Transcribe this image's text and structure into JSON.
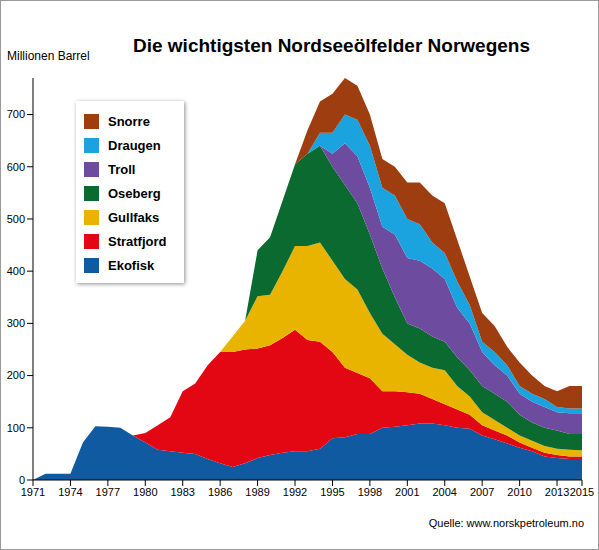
{
  "chart_data": {
    "type": "area",
    "stacked": true,
    "title": "Die wichtigsten Nordseeölfelder Norwegens",
    "y_label": "Millionen Barrel",
    "source": "Quelle: www.norskpetroleum.no",
    "legend": "upper left",
    "grid": false,
    "xlim": [
      1971,
      2015
    ],
    "xticks": [
      1971,
      1974,
      1977,
      1980,
      1983,
      1986,
      1989,
      1992,
      1995,
      1998,
      2001,
      2004,
      2007,
      2010,
      2013,
      2015
    ],
    "ylim": [
      0,
      770
    ],
    "yticks": [
      0,
      100,
      200,
      300,
      400,
      500,
      600,
      700
    ],
    "x": [
      1971,
      1972,
      1973,
      1974,
      1975,
      1976,
      1977,
      1978,
      1979,
      1980,
      1981,
      1982,
      1983,
      1984,
      1985,
      1986,
      1987,
      1988,
      1989,
      1990,
      1991,
      1992,
      1993,
      1994,
      1995,
      1996,
      1997,
      1998,
      1999,
      2000,
      2001,
      2002,
      2003,
      2004,
      2005,
      2006,
      2007,
      2008,
      2009,
      2010,
      2011,
      2012,
      2013,
      2014,
      2015
    ],
    "series": [
      {
        "name": "Ekofisk",
        "color": "#0f5aa0",
        "values": [
          0,
          12,
          12,
          12,
          72,
          103,
          102,
          100,
          85,
          72,
          58,
          55,
          52,
          50,
          40,
          32,
          25,
          32,
          42,
          48,
          52,
          55,
          55,
          60,
          80,
          82,
          88,
          88,
          100,
          102,
          105,
          108,
          108,
          105,
          100,
          98,
          85,
          78,
          70,
          62,
          55,
          45,
          42,
          40,
          40
        ]
      },
      {
        "name": "Stratfjord",
        "color": "#e30613",
        "values": [
          0,
          0,
          0,
          0,
          0,
          0,
          0,
          0,
          0,
          18,
          47,
          65,
          118,
          135,
          180,
          213,
          220,
          218,
          210,
          210,
          220,
          233,
          213,
          205,
          165,
          133,
          117,
          107,
          70,
          68,
          63,
          57,
          47,
          40,
          35,
          27,
          20,
          17,
          15,
          10,
          7,
          7,
          6,
          5,
          5
        ]
      },
      {
        "name": "Gullfaks",
        "color": "#e8b400",
        "values": [
          0,
          0,
          0,
          0,
          0,
          0,
          0,
          0,
          0,
          0,
          0,
          0,
          0,
          0,
          0,
          0,
          30,
          55,
          100,
          97,
          128,
          160,
          180,
          190,
          175,
          170,
          160,
          125,
          110,
          90,
          72,
          60,
          60,
          65,
          45,
          35,
          25,
          20,
          15,
          13,
          13,
          13,
          12,
          13,
          12
        ]
      },
      {
        "name": "Oseberg",
        "color": "#0b6a2f",
        "values": [
          0,
          0,
          0,
          0,
          0,
          0,
          0,
          0,
          0,
          0,
          0,
          0,
          0,
          0,
          0,
          0,
          0,
          0,
          88,
          110,
          135,
          157,
          177,
          185,
          180,
          180,
          165,
          150,
          125,
          90,
          60,
          65,
          60,
          55,
          55,
          50,
          50,
          50,
          50,
          40,
          35,
          35,
          35,
          30,
          31
        ]
      },
      {
        "name": "Troll",
        "color": "#6d4c9f",
        "values": [
          0,
          0,
          0,
          0,
          0,
          0,
          0,
          0,
          0,
          0,
          0,
          0,
          0,
          0,
          0,
          0,
          0,
          0,
          0,
          0,
          0,
          0,
          0,
          0,
          25,
          80,
          90,
          90,
          80,
          120,
          125,
          130,
          130,
          120,
          95,
          90,
          65,
          55,
          50,
          40,
          40,
          40,
          35,
          40,
          40
        ]
      },
      {
        "name": "Draugen",
        "color": "#1ba3e0",
        "values": [
          0,
          0,
          0,
          0,
          0,
          0,
          0,
          0,
          0,
          0,
          0,
          0,
          0,
          0,
          0,
          0,
          0,
          0,
          0,
          0,
          0,
          0,
          0,
          25,
          40,
          55,
          70,
          80,
          75,
          75,
          75,
          70,
          50,
          50,
          50,
          35,
          20,
          25,
          20,
          15,
          15,
          15,
          10,
          9,
          9
        ]
      },
      {
        "name": "Snorre",
        "color": "#9e3d0f",
        "values": [
          0,
          0,
          0,
          0,
          0,
          0,
          0,
          0,
          0,
          0,
          0,
          0,
          0,
          0,
          0,
          0,
          0,
          0,
          0,
          0,
          0,
          0,
          45,
          60,
          75,
          70,
          65,
          60,
          55,
          55,
          70,
          80,
          90,
          95,
          80,
          55,
          55,
          50,
          35,
          45,
          35,
          25,
          30,
          43,
          43
        ]
      }
    ]
  }
}
